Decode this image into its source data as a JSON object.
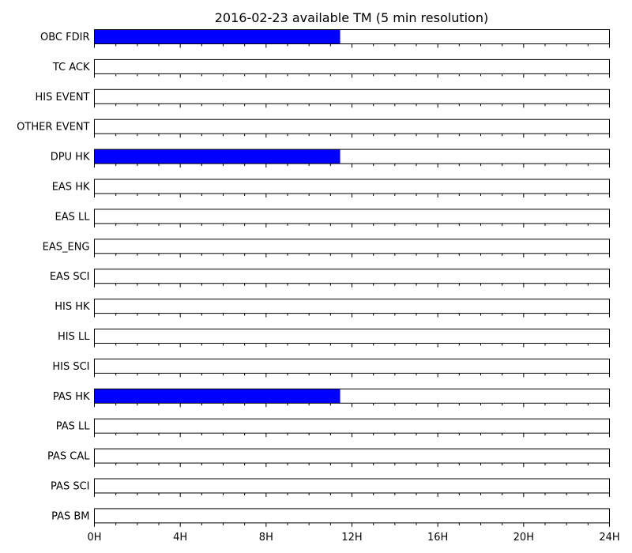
{
  "chart_data": {
    "type": "bar",
    "title": "2016-02-23 available TM (5 min resolution)",
    "xlabel": "",
    "ylabel": "",
    "xlim": [
      0,
      24
    ],
    "x_unit": "hours",
    "x_ticks": [
      "0H",
      "4H",
      "8H",
      "12H",
      "16H",
      "20H",
      "24H"
    ],
    "minor_tick_interval_hours": 1,
    "bar_color": "#0000ff",
    "categories": [
      "OBC FDIR",
      "TC ACK",
      "HIS EVENT",
      "OTHER EVENT",
      "DPU HK",
      "EAS HK",
      "EAS LL",
      "EAS_ENG",
      "EAS SCI",
      "HIS HK",
      "HIS LL",
      "HIS SCI",
      "PAS HK",
      "PAS LL",
      "PAS CAL",
      "PAS SCI",
      "PAS BM"
    ],
    "available_hours": [
      [
        [
          0,
          11.45
        ]
      ],
      [],
      [],
      [],
      [
        [
          0,
          11.45
        ]
      ],
      [],
      [],
      [],
      [],
      [],
      [],
      [],
      [
        [
          0,
          11.45
        ]
      ],
      [],
      [],
      [],
      []
    ]
  }
}
